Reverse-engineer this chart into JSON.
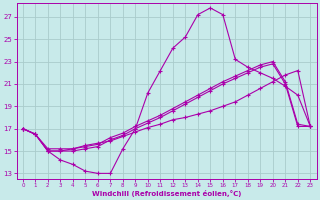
{
  "xlabel": "Windchill (Refroidissement éolien,°C)",
  "background_color": "#c8eaea",
  "grid_color": "#aacccc",
  "line_color": "#aa00aa",
  "x_ticks": [
    0,
    1,
    2,
    3,
    4,
    5,
    6,
    7,
    8,
    9,
    10,
    11,
    12,
    13,
    14,
    15,
    16,
    17,
    18,
    19,
    20,
    21,
    22,
    23
  ],
  "y_ticks": [
    13,
    15,
    17,
    19,
    21,
    23,
    25,
    27
  ],
  "xlim": [
    -0.5,
    23.5
  ],
  "ylim": [
    12.5,
    28.2
  ],
  "line1_x": [
    0,
    1,
    2,
    3,
    4,
    5,
    6,
    7,
    8,
    9,
    10,
    11,
    12,
    13,
    14,
    15,
    16,
    17,
    18,
    19,
    20,
    21,
    22,
    23
  ],
  "line1_y": [
    17.0,
    16.5,
    15.0,
    14.2,
    13.8,
    13.2,
    13.0,
    13.0,
    15.2,
    17.0,
    20.2,
    22.2,
    24.2,
    25.2,
    27.2,
    27.8,
    27.2,
    23.2,
    22.5,
    22.0,
    21.5,
    20.8,
    20.0,
    17.2
  ],
  "line2_x": [
    0,
    1,
    2,
    3,
    4,
    5,
    6,
    7,
    8,
    9,
    10,
    11,
    12,
    13,
    14,
    15,
    16,
    17,
    18,
    19,
    20,
    21,
    22,
    23
  ],
  "line2_y": [
    17.0,
    16.5,
    15.0,
    15.0,
    15.0,
    15.2,
    15.4,
    16.0,
    16.4,
    17.0,
    17.5,
    18.0,
    18.6,
    19.2,
    19.8,
    20.4,
    21.0,
    21.5,
    22.0,
    22.5,
    22.8,
    21.0,
    17.2,
    17.2
  ],
  "line3_x": [
    0,
    1,
    2,
    3,
    4,
    5,
    6,
    7,
    8,
    9,
    10,
    11,
    12,
    13,
    14,
    15,
    16,
    17,
    18,
    19,
    20,
    21,
    22,
    23
  ],
  "line3_y": [
    17.0,
    16.5,
    15.2,
    15.2,
    15.2,
    15.4,
    15.6,
    16.2,
    16.6,
    17.2,
    17.7,
    18.2,
    18.8,
    19.4,
    20.0,
    20.6,
    21.2,
    21.7,
    22.2,
    22.7,
    23.0,
    21.2,
    17.4,
    17.2
  ],
  "line4_x": [
    0,
    1,
    2,
    3,
    4,
    5,
    6,
    7,
    8,
    9,
    10,
    11,
    12,
    13,
    14,
    15,
    16,
    17,
    18,
    19,
    20,
    21,
    22,
    23
  ],
  "line4_y": [
    17.0,
    16.5,
    15.0,
    15.0,
    15.2,
    15.5,
    15.7,
    15.9,
    16.3,
    16.7,
    17.1,
    17.4,
    17.8,
    18.0,
    18.3,
    18.6,
    19.0,
    19.4,
    20.0,
    20.6,
    21.2,
    21.8,
    22.2,
    17.2
  ]
}
